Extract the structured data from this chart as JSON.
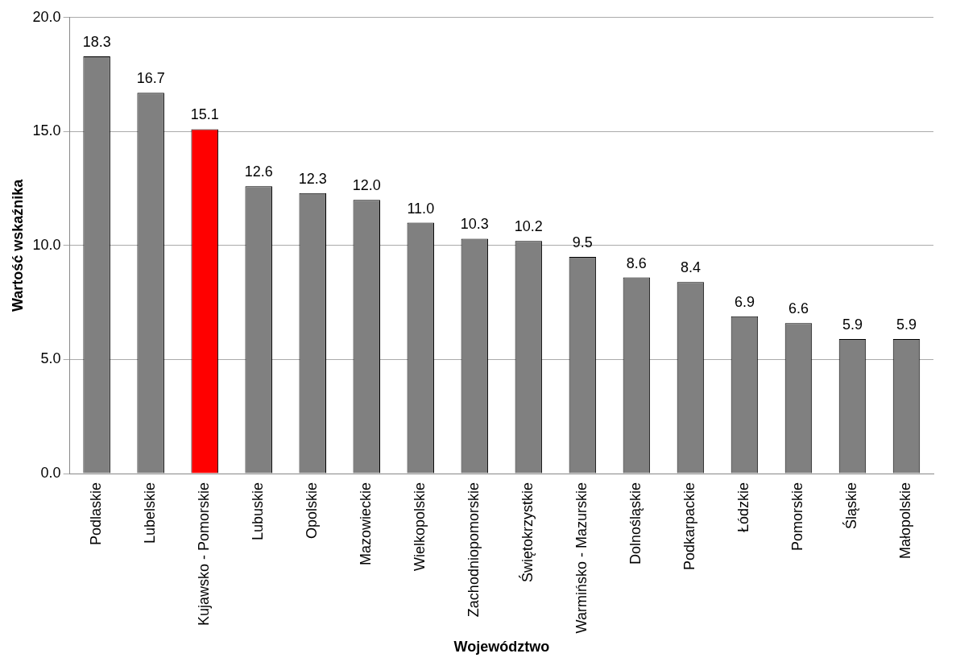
{
  "chart_data": {
    "type": "bar",
    "xlabel": "Województwo",
    "ylabel": "Wartość wskaźnika",
    "categories": [
      "Podlaskie",
      "Lubelskie",
      "Kujawsko - Pomorskie",
      "Lubuskie",
      "Opolskie",
      "Mazowieckie",
      "Wielkopolskie",
      "Zachodniopomorskie",
      "Świętokrzystkie",
      "Warmińsko - Mazurskie",
      "Dolnośląskie",
      "Podkarpackie",
      "Łódzkie",
      "Pomorskie",
      "Śląskie",
      "Małopolskie"
    ],
    "values": [
      18.3,
      16.7,
      15.1,
      12.6,
      12.3,
      12.0,
      11.0,
      10.3,
      10.2,
      9.5,
      8.6,
      8.4,
      6.9,
      6.6,
      5.9,
      5.9
    ],
    "colors": [
      "#808080",
      "#808080",
      "#ff0000",
      "#808080",
      "#808080",
      "#808080",
      "#808080",
      "#808080",
      "#808080",
      "#808080",
      "#808080",
      "#808080",
      "#808080",
      "#808080",
      "#808080",
      "#808080"
    ],
    "ylim": [
      0,
      20
    ],
    "yticks": [
      {
        "value": 0,
        "label": "0.0"
      },
      {
        "value": 5,
        "label": "5.0"
      },
      {
        "value": 10,
        "label": "10.0"
      },
      {
        "value": 15,
        "label": "15.0"
      },
      {
        "value": 20,
        "label": "20.0"
      }
    ],
    "value_labels": [
      "18.3",
      "16.7",
      "15.1",
      "12.6",
      "12.3",
      "12.0",
      "11.0",
      "10.3",
      "10.2",
      "9.5",
      "8.6",
      "8.4",
      "6.9",
      "6.6",
      "5.9",
      "5.9"
    ],
    "grid": "y",
    "legend": false
  }
}
